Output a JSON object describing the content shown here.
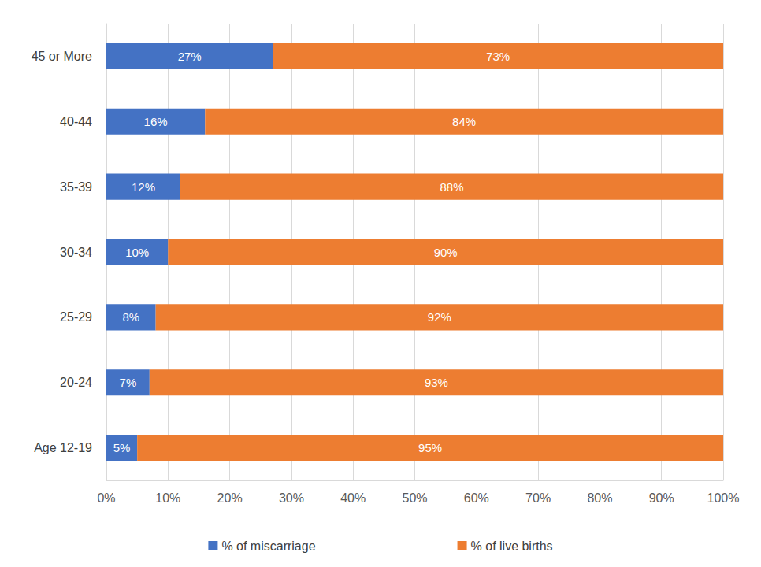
{
  "chart_data": {
    "type": "bar",
    "orientation": "horizontal",
    "stacked": true,
    "grid": true,
    "legend": "bottom",
    "data_labels": true,
    "categories": [
      "Age 12-19",
      "20-24",
      "25-29",
      "30-34",
      "35-39",
      "40-44",
      "45 or More"
    ],
    "series": [
      {
        "name": "% of miscarriage",
        "color": "#4472c4",
        "values": [
          5,
          7,
          8,
          10,
          12,
          16,
          27
        ],
        "value_labels": [
          "5%",
          "7%",
          "8%",
          "10%",
          "12%",
          "16%",
          "27%"
        ]
      },
      {
        "name": "% of live births",
        "color": "#ed7d31",
        "values": [
          95,
          93,
          92,
          90,
          88,
          84,
          73
        ],
        "value_labels": [
          "95%",
          "93%",
          "92%",
          "90%",
          "88%",
          "84%",
          "73%"
        ]
      }
    ],
    "xlim": [
      0,
      100
    ],
    "xticks": [
      {
        "value": 0,
        "label": "0%"
      },
      {
        "value": 10,
        "label": "10%"
      },
      {
        "value": 20,
        "label": "20%"
      },
      {
        "value": 30,
        "label": "30%"
      },
      {
        "value": 40,
        "label": "40%"
      },
      {
        "value": 50,
        "label": "50%"
      },
      {
        "value": 60,
        "label": "60%"
      },
      {
        "value": 70,
        "label": "70%"
      },
      {
        "value": 80,
        "label": "80%"
      },
      {
        "value": 90,
        "label": "90%"
      },
      {
        "value": 100,
        "label": "100%"
      }
    ]
  }
}
